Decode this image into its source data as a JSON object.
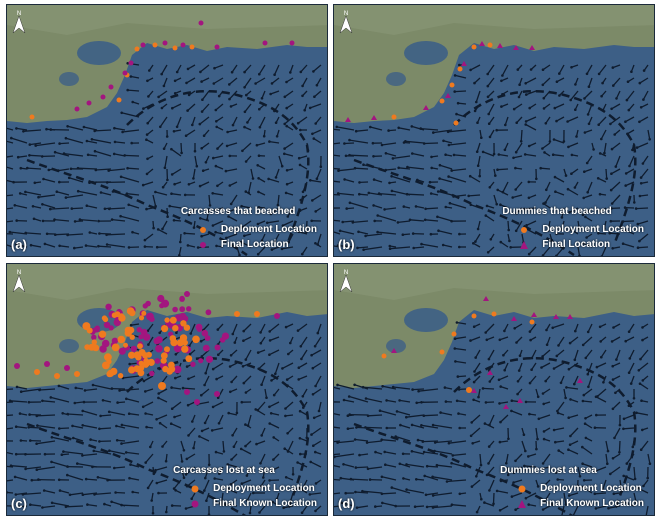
{
  "colors": {
    "deployment": "#ef7a1f",
    "final": "#a3157f",
    "water": "#3d5f86",
    "land": "#7c8a68",
    "arrow": "#0f1c2e"
  },
  "panels": [
    {
      "label": "(a)",
      "legend_title": "Carcasses that beached",
      "deploy_label": "Deploment Location",
      "final_label": "Final Location",
      "final_marker": "circle"
    },
    {
      "label": "(b)",
      "legend_title": "Dummies that beached",
      "deploy_label": "Deployment Location",
      "final_label": "Final Location",
      "final_marker": "triangle"
    },
    {
      "label": "(c)",
      "legend_title": "Carcasses lost at sea",
      "deploy_label": "Deployment Location",
      "final_label": "Final Known Location",
      "final_marker": "circle"
    },
    {
      "label": "(d)",
      "legend_title": "Dummies lost at sea",
      "deploy_label": "Deployment Location",
      "final_label": "Final Known Location",
      "final_marker": "triangle"
    }
  ],
  "north_arrow_label": "N"
}
